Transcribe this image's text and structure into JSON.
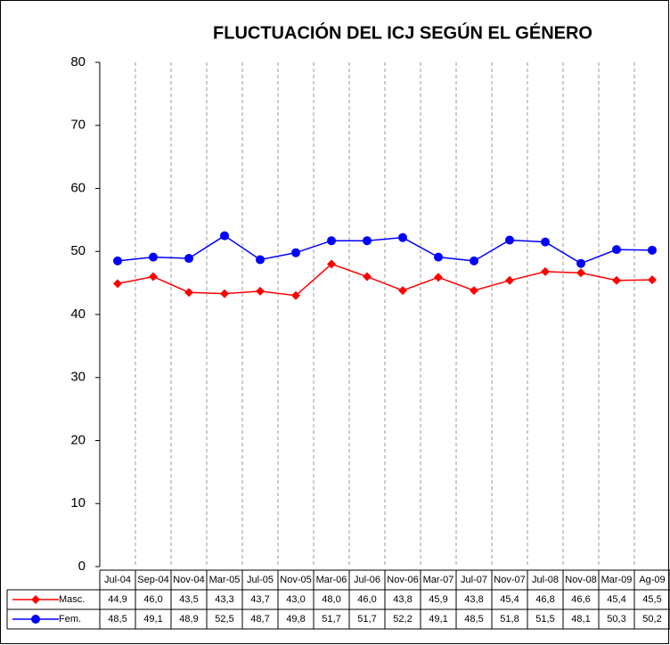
{
  "chart_data": {
    "type": "line",
    "title": "FLUCTUACIÓN DEL ICJ SEGÚN EL GÉNERO",
    "categories": [
      "Jul-04",
      "Sep-04",
      "Nov-04",
      "Mar-05",
      "Jul-05",
      "Nov-05",
      "Mar-06",
      "Jul-06",
      "Nov-06",
      "Mar-07",
      "Jul-07",
      "Nov-07",
      "Jul-08",
      "Nov-08",
      "Mar-09",
      "Ag-09"
    ],
    "series": [
      {
        "name": "Masc.",
        "color": "#ff0000",
        "marker": "diamond",
        "values": [
          44.9,
          46.0,
          43.5,
          43.3,
          43.7,
          43.0,
          48.0,
          46.0,
          43.8,
          45.9,
          43.8,
          45.4,
          46.8,
          46.6,
          45.4,
          45.5
        ],
        "value_labels": [
          "44,9",
          "46,0",
          "43,5",
          "43,3",
          "43,7",
          "43,0",
          "48,0",
          "46,0",
          "43,8",
          "45,9",
          "43,8",
          "45,4",
          "46,8",
          "46,6",
          "45,4",
          "45,5"
        ]
      },
      {
        "name": "Fem.",
        "color": "#0000ff",
        "marker": "circle",
        "values": [
          48.5,
          49.1,
          48.9,
          52.5,
          48.7,
          49.8,
          51.7,
          51.7,
          52.2,
          49.1,
          48.5,
          51.8,
          51.5,
          48.1,
          50.3,
          50.2
        ],
        "value_labels": [
          "48,5",
          "49,1",
          "48,9",
          "52,5",
          "48,7",
          "49,8",
          "51,7",
          "51,7",
          "52,2",
          "49,1",
          "48,5",
          "51,8",
          "51,5",
          "48,1",
          "50,3",
          "50,2"
        ]
      }
    ],
    "ylim": [
      0,
      80
    ],
    "yticks": [
      0,
      10,
      20,
      30,
      40,
      50,
      60,
      70,
      80
    ],
    "grid": true
  }
}
